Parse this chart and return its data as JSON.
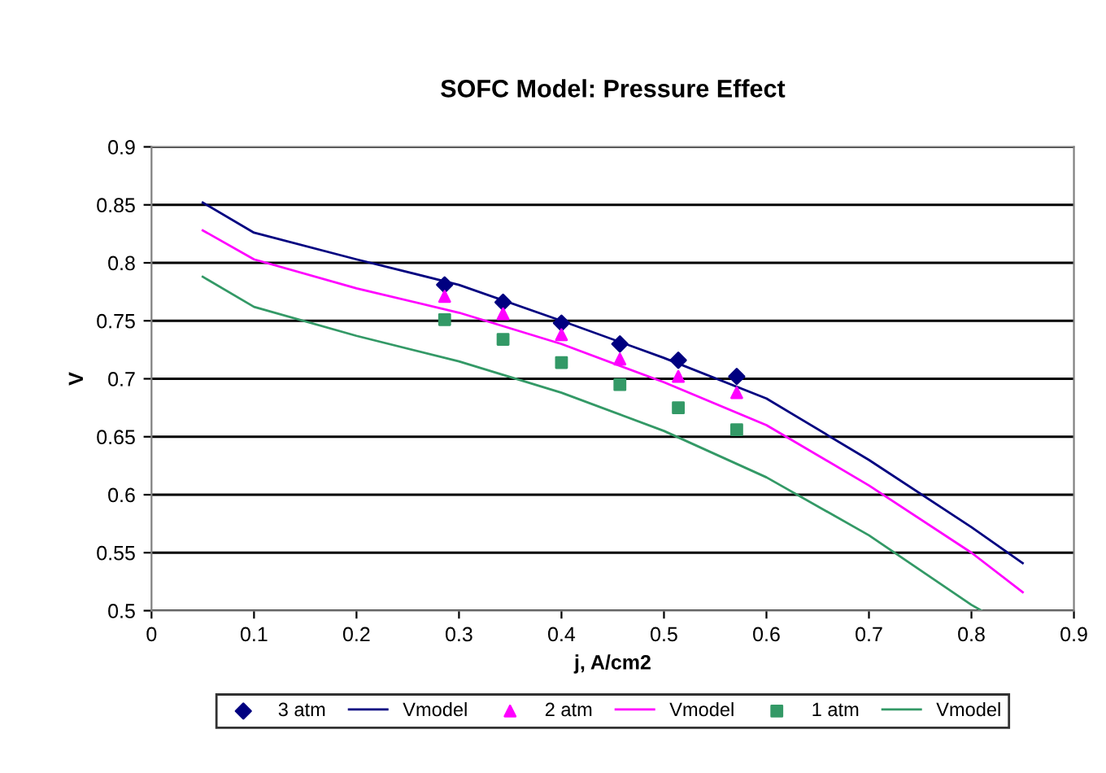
{
  "chart_data": {
    "type": "scatter",
    "title": "SOFC Model: Pressure Effect",
    "xlabel": "j, A/cm2",
    "ylabel": "V",
    "xlim": [
      0,
      0.9
    ],
    "xticks": [
      0,
      0.1,
      0.2,
      0.3,
      0.4,
      0.5,
      0.6,
      0.7,
      0.8,
      0.9
    ],
    "ylim": [
      0.5,
      0.9
    ],
    "yticks": [
      0.5,
      0.55,
      0.6,
      0.65,
      0.7,
      0.75,
      0.8,
      0.85,
      0.9
    ],
    "grid": "y",
    "legend": "bottom",
    "series": [
      {
        "name": "3 atm",
        "marker": "diamond",
        "color": "#000080",
        "x": [
          0.286,
          0.343,
          0.4,
          0.457,
          0.514,
          0.571
        ],
        "values": [
          0.781,
          0.766,
          0.748,
          0.73,
          0.716,
          0.702
        ]
      },
      {
        "name": "Vmodel",
        "type": "line",
        "marker": "none",
        "color": "#000080",
        "x": [
          0.05,
          0.1,
          0.2,
          0.3,
          0.4,
          0.5,
          0.6,
          0.7,
          0.8,
          0.85
        ],
        "values": [
          0.852,
          0.826,
          0.803,
          0.781,
          0.75,
          0.718,
          0.683,
          0.63,
          0.572,
          0.541
        ]
      },
      {
        "name": "2 atm",
        "marker": "triangle",
        "color": "#ff00ff",
        "x": [
          0.286,
          0.343,
          0.4,
          0.457,
          0.514,
          0.571
        ],
        "values": [
          0.771,
          0.756,
          0.738,
          0.717,
          0.702,
          0.688
        ]
      },
      {
        "name": "Vmodel",
        "type": "line",
        "marker": "none",
        "color": "#ff00ff",
        "x": [
          0.05,
          0.1,
          0.2,
          0.3,
          0.4,
          0.5,
          0.6,
          0.7,
          0.8,
          0.85
        ],
        "values": [
          0.828,
          0.803,
          0.778,
          0.757,
          0.73,
          0.697,
          0.66,
          0.608,
          0.55,
          0.516
        ]
      },
      {
        "name": "1 atm",
        "marker": "square",
        "color": "#339966",
        "x": [
          0.286,
          0.343,
          0.4,
          0.457,
          0.514,
          0.571
        ],
        "values": [
          0.751,
          0.734,
          0.714,
          0.695,
          0.675,
          0.656
        ]
      },
      {
        "name": "Vmodel",
        "type": "line",
        "marker": "none",
        "color": "#339966",
        "x": [
          0.05,
          0.1,
          0.2,
          0.3,
          0.4,
          0.5,
          0.6,
          0.7,
          0.8,
          0.81
        ],
        "values": [
          0.788,
          0.762,
          0.737,
          0.715,
          0.688,
          0.655,
          0.615,
          0.565,
          0.505,
          0.5
        ]
      }
    ]
  }
}
